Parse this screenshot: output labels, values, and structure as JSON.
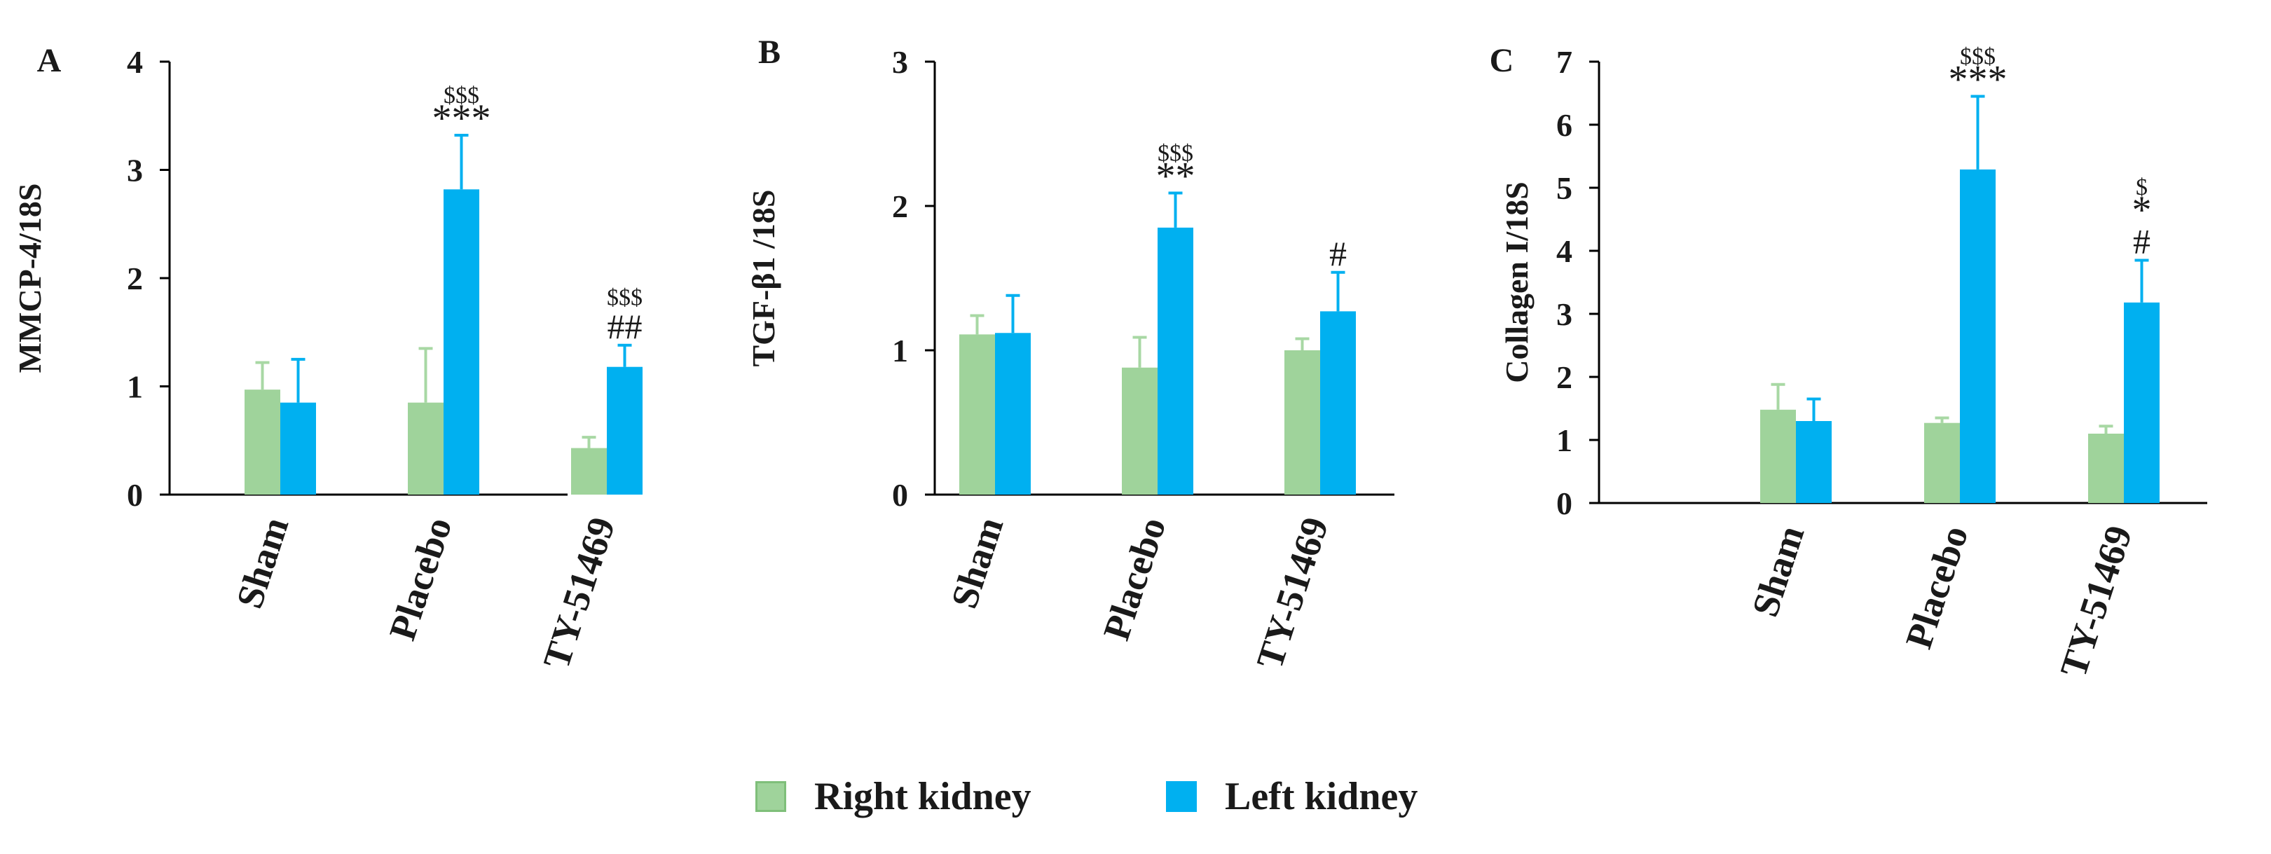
{
  "colors": {
    "right_kidney": "#9fd39b",
    "right_kidney_border": "#7fbf7a",
    "left_kidney": "#00b0f0",
    "axis": "#000000",
    "text": "#1a1a1a"
  },
  "legend": {
    "items": [
      {
        "key": "right",
        "label": "Right kidney"
      },
      {
        "key": "left",
        "label": "Left kidney"
      }
    ]
  },
  "chart_data": [
    {
      "type": "bar",
      "panel_label": "A",
      "ylabel": "MMCP-4/18S",
      "categories": [
        "Sham",
        "Placebo",
        "TY-51469"
      ],
      "ylim": [
        0,
        4
      ],
      "yticks": [
        0,
        1,
        2,
        3,
        4
      ],
      "series": [
        {
          "name": "Right kidney",
          "values": [
            0.97,
            0.85,
            0.43
          ],
          "errors": [
            0.25,
            0.5,
            0.1
          ]
        },
        {
          "name": "Left kidney",
          "values": [
            0.85,
            2.82,
            1.18
          ],
          "errors": [
            0.4,
            0.5,
            0.2
          ]
        }
      ],
      "annotations": [
        {
          "category": 1,
          "series": 1,
          "lines": [
            "$$$",
            "***"
          ]
        },
        {
          "category": 2,
          "series": 1,
          "lines": [
            "$$$",
            "##"
          ]
        }
      ]
    },
    {
      "type": "bar",
      "panel_label": "B",
      "ylabel": "TGF-β1 /18S",
      "categories": [
        "Sham",
        "Placebo",
        "TY-51469"
      ],
      "ylim": [
        0,
        3
      ],
      "yticks": [
        0,
        1,
        2,
        3
      ],
      "series": [
        {
          "name": "Right kidney",
          "values": [
            1.11,
            0.88,
            1.0
          ],
          "errors": [
            0.13,
            0.21,
            0.08
          ]
        },
        {
          "name": "Left kidney",
          "values": [
            1.12,
            1.85,
            1.27
          ],
          "errors": [
            0.26,
            0.24,
            0.27
          ]
        }
      ],
      "annotations": [
        {
          "category": 1,
          "series": 1,
          "lines": [
            "$$$",
            "**"
          ]
        },
        {
          "category": 2,
          "series": 1,
          "lines": [
            "#"
          ]
        }
      ]
    },
    {
      "type": "bar",
      "panel_label": "C",
      "ylabel": "Collagen I/18S",
      "categories": [
        "Sham",
        "Placebo",
        "TY-51469"
      ],
      "ylim": [
        0,
        7
      ],
      "yticks": [
        0,
        1,
        2,
        3,
        4,
        5,
        6,
        7
      ],
      "series": [
        {
          "name": "Right kidney",
          "values": [
            1.48,
            1.27,
            1.1
          ],
          "errors": [
            0.4,
            0.08,
            0.12
          ]
        },
        {
          "name": "Left kidney",
          "values": [
            1.3,
            5.29,
            3.18
          ],
          "errors": [
            0.35,
            1.16,
            0.67
          ]
        }
      ],
      "annotations": [
        {
          "category": 1,
          "series": 1,
          "lines": [
            "$$$",
            "***"
          ]
        },
        {
          "category": 2,
          "series": 1,
          "lines": [
            "$",
            "*",
            "#"
          ]
        }
      ]
    }
  ]
}
